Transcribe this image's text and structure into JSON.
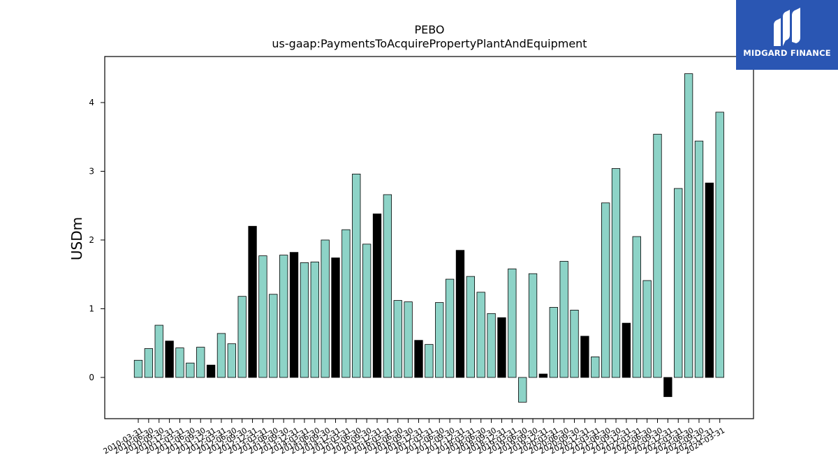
{
  "logo": {
    "text": "MIDGARD FINANCE",
    "background": "#2a56b3"
  },
  "chart_data": {
    "type": "bar",
    "title": "PEBO",
    "subtitle": "us-gaap:PaymentsToAcquirePropertyPlantAndEquipment",
    "ylabel": "USDm",
    "xlabel": "",
    "ylim": [
      -0.6,
      4.67
    ],
    "yticks": [
      0,
      1,
      2,
      3,
      4
    ],
    "colors": {
      "quarter": "#8dd3c7",
      "year_end": "#000000",
      "edge": "#000000"
    },
    "categories": [
      "2010-03-31",
      "2010-06-30",
      "2010-09-30",
      "2010-12-31",
      "2011-03-31",
      "2011-06-30",
      "2011-09-30",
      "2011-12-31",
      "2012-03-31",
      "2012-06-30",
      "2012-09-30",
      "2012-12-31",
      "2013-03-31",
      "2013-06-30",
      "2013-09-30",
      "2013-12-31",
      "2014-03-31",
      "2014-06-30",
      "2014-09-30",
      "2014-12-31",
      "2015-03-31",
      "2015-06-30",
      "2015-09-30",
      "2015-12-31",
      "2016-03-31",
      "2016-06-30",
      "2016-09-30",
      "2016-12-31",
      "2017-03-31",
      "2017-06-30",
      "2017-09-30",
      "2017-12-31",
      "2018-03-31",
      "2018-06-30",
      "2018-09-30",
      "2018-12-31",
      "2019-03-31",
      "2019-06-30",
      "2019-09-30",
      "2019-12-31",
      "2020-03-31",
      "2020-06-30",
      "2020-09-30",
      "2020-12-31",
      "2021-03-31",
      "2021-06-30",
      "2021-09-30",
      "2021-12-31",
      "2022-03-31",
      "2022-06-30",
      "2022-09-30",
      "2022-12-31",
      "2023-03-31",
      "2023-06-30",
      "2023-09-30",
      "2023-12-31",
      "2024-03-31"
    ],
    "values": [
      0.25,
      0.42,
      0.76,
      0.53,
      0.43,
      0.21,
      0.44,
      0.18,
      0.64,
      0.49,
      1.18,
      2.2,
      1.77,
      1.21,
      1.78,
      1.82,
      1.67,
      1.68,
      2.0,
      1.74,
      2.15,
      2.96,
      1.94,
      2.38,
      2.66,
      1.12,
      1.1,
      0.54,
      0.48,
      1.09,
      1.43,
      1.85,
      1.47,
      1.24,
      0.93,
      0.87,
      1.58,
      -0.36,
      1.51,
      0.05,
      1.02,
      1.69,
      0.98,
      0.6,
      0.3,
      2.54,
      3.04,
      0.79,
      2.05,
      1.41,
      3.54,
      -0.28,
      2.75,
      4.42,
      3.44,
      2.83,
      3.86
    ],
    "grid": false,
    "legend": "none"
  }
}
